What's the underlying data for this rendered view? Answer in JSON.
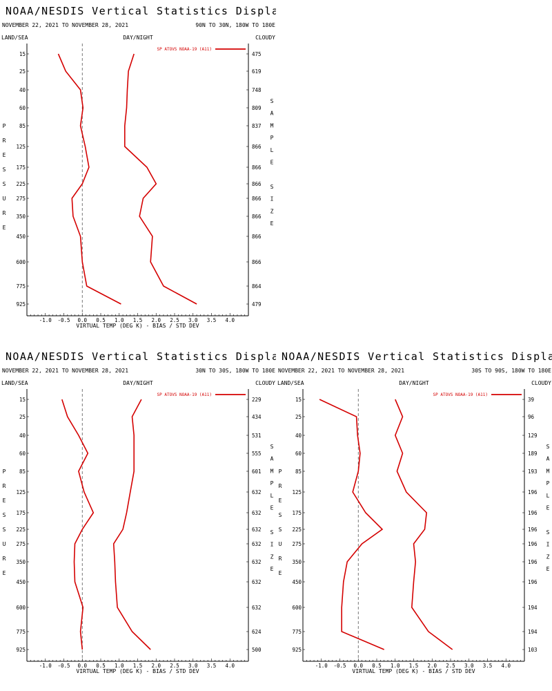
{
  "colors": {
    "series": "#d40000",
    "axis": "#000000",
    "zero_line": "#555555",
    "divider": "#9a9a9a"
  },
  "labels": {
    "title": "NOAA/NESDIS Vertical Statistics Display",
    "land_sea": "LAND/SEA",
    "day_night": "DAY/NIGHT",
    "cloudy": "CLOUDY",
    "xlabel": "VIRTUAL TEMP (DEG K) - BIAS / STD DEV",
    "legend": "SP ATOVS NOAA-19 (A11)",
    "ylabel_letters": [
      "P",
      "R",
      "E",
      "S",
      "S",
      "U",
      "R",
      "E"
    ],
    "right_letters": [
      "S",
      "A",
      "M",
      "P",
      "L",
      "E",
      "",
      "S",
      "I",
      "Z",
      "E"
    ]
  },
  "chart_data": [
    {
      "type": "line",
      "title": "NOAA/NESDIS Vertical Statistics Display",
      "date_range": "NOVEMBER 22, 2021 TO NOVEMBER 28, 2021",
      "region": "90N TO 30N, 180W TO 180E",
      "xlabel": "VIRTUAL TEMP (DEG K) - BIAS / STD DEV",
      "ylabel": "PRESSURE",
      "xlim": [
        -1.5,
        4.5
      ],
      "xticks": [
        "-1.0",
        "-0.5",
        "0.0",
        "0.5",
        "1.0",
        "1.5",
        "2.0",
        "2.5",
        "3.0",
        "3.5",
        "4.0"
      ],
      "pressure_levels": [
        "15",
        "25",
        "40",
        "60",
        "85",
        "125",
        "175",
        "225",
        "275",
        "350",
        "450",
        "600",
        "775",
        "925"
      ],
      "sample_size": [
        "475",
        "619",
        "748",
        "809",
        "837",
        "866",
        "866",
        "866",
        "866",
        "866",
        "866",
        "866",
        "864",
        "479"
      ],
      "series": [
        {
          "name": "SP ATOVS NOAA-19 (A11)",
          "stat": "bias",
          "values": [
            -0.65,
            -0.45,
            -0.05,
            0.02,
            -0.05,
            0.08,
            0.18,
            0.0,
            -0.28,
            -0.25,
            -0.05,
            0.0,
            0.12,
            1.05
          ]
        },
        {
          "name": "SP ATOVS NOAA-19 (A11)",
          "stat": "std_dev",
          "values": [
            1.4,
            1.25,
            1.22,
            1.2,
            1.15,
            1.15,
            1.75,
            2.0,
            1.65,
            1.55,
            1.9,
            1.85,
            2.2,
            3.1
          ]
        }
      ]
    },
    {
      "type": "line",
      "title": "NOAA/NESDIS Vertical Statistics Display",
      "date_range": "NOVEMBER 22, 2021 TO NOVEMBER 28, 2021",
      "region": "30N TO 30S, 180W TO 180E",
      "xlabel": "VIRTUAL TEMP (DEG K) - BIAS / STD DEV",
      "ylabel": "PRESSURE",
      "xlim": [
        -1.5,
        4.5
      ],
      "xticks": [
        "-1.0",
        "-0.5",
        "0.0",
        "0.5",
        "1.0",
        "1.5",
        "2.0",
        "2.5",
        "3.0",
        "3.5",
        "4.0"
      ],
      "pressure_levels": [
        "15",
        "25",
        "40",
        "60",
        "85",
        "125",
        "175",
        "225",
        "275",
        "350",
        "450",
        "600",
        "775",
        "925"
      ],
      "sample_size": [
        "229",
        "434",
        "531",
        "555",
        "601",
        "632",
        "632",
        "632",
        "632",
        "632",
        "632",
        "632",
        "624",
        "500"
      ],
      "series": [
        {
          "name": "SP ATOVS NOAA-19 (A11)",
          "stat": "bias",
          "values": [
            -0.55,
            -0.4,
            -0.1,
            0.15,
            -0.1,
            0.05,
            0.3,
            0.0,
            -0.2,
            -0.22,
            -0.2,
            0.02,
            -0.05,
            0.0
          ]
        },
        {
          "name": "SP ATOVS NOAA-19 (A11)",
          "stat": "std_dev",
          "values": [
            1.6,
            1.35,
            1.4,
            1.4,
            1.4,
            1.3,
            1.2,
            1.1,
            0.85,
            0.88,
            0.9,
            0.95,
            1.35,
            1.85
          ]
        }
      ]
    },
    {
      "type": "line",
      "title": "NOAA/NESDIS Vertical Statistics Display",
      "date_range": "NOVEMBER 22, 2021 TO NOVEMBER 28, 2021",
      "region": "30S TO 90S, 180W TO 180E",
      "xlabel": "VIRTUAL TEMP (DEG K) - BIAS / STD DEV",
      "ylabel": "PRESSURE",
      "xlim": [
        -1.5,
        4.5
      ],
      "xticks": [
        "-1.0",
        "-0.5",
        "0.0",
        "0.5",
        "1.0",
        "1.5",
        "2.0",
        "2.5",
        "3.0",
        "3.5",
        "4.0"
      ],
      "pressure_levels": [
        "15",
        "25",
        "40",
        "60",
        "85",
        "125",
        "175",
        "225",
        "275",
        "350",
        "450",
        "600",
        "775",
        "925"
      ],
      "sample_size": [
        "39",
        "96",
        "129",
        "189",
        "193",
        "196",
        "196",
        "196",
        "196",
        "196",
        "196",
        "194",
        "194",
        "103"
      ],
      "series": [
        {
          "name": "SP ATOVS NOAA-19 (A11)",
          "stat": "bias",
          "values": [
            -1.05,
            -0.05,
            -0.02,
            0.05,
            0.0,
            -0.15,
            0.2,
            0.65,
            0.1,
            -0.3,
            -0.4,
            -0.45,
            -0.45,
            0.7
          ]
        },
        {
          "name": "SP ATOVS NOAA-19 (A11)",
          "stat": "std_dev",
          "values": [
            1.0,
            1.2,
            1.0,
            1.2,
            1.05,
            1.3,
            1.85,
            1.8,
            1.5,
            1.55,
            1.5,
            1.45,
            1.9,
            2.55
          ]
        }
      ]
    }
  ]
}
